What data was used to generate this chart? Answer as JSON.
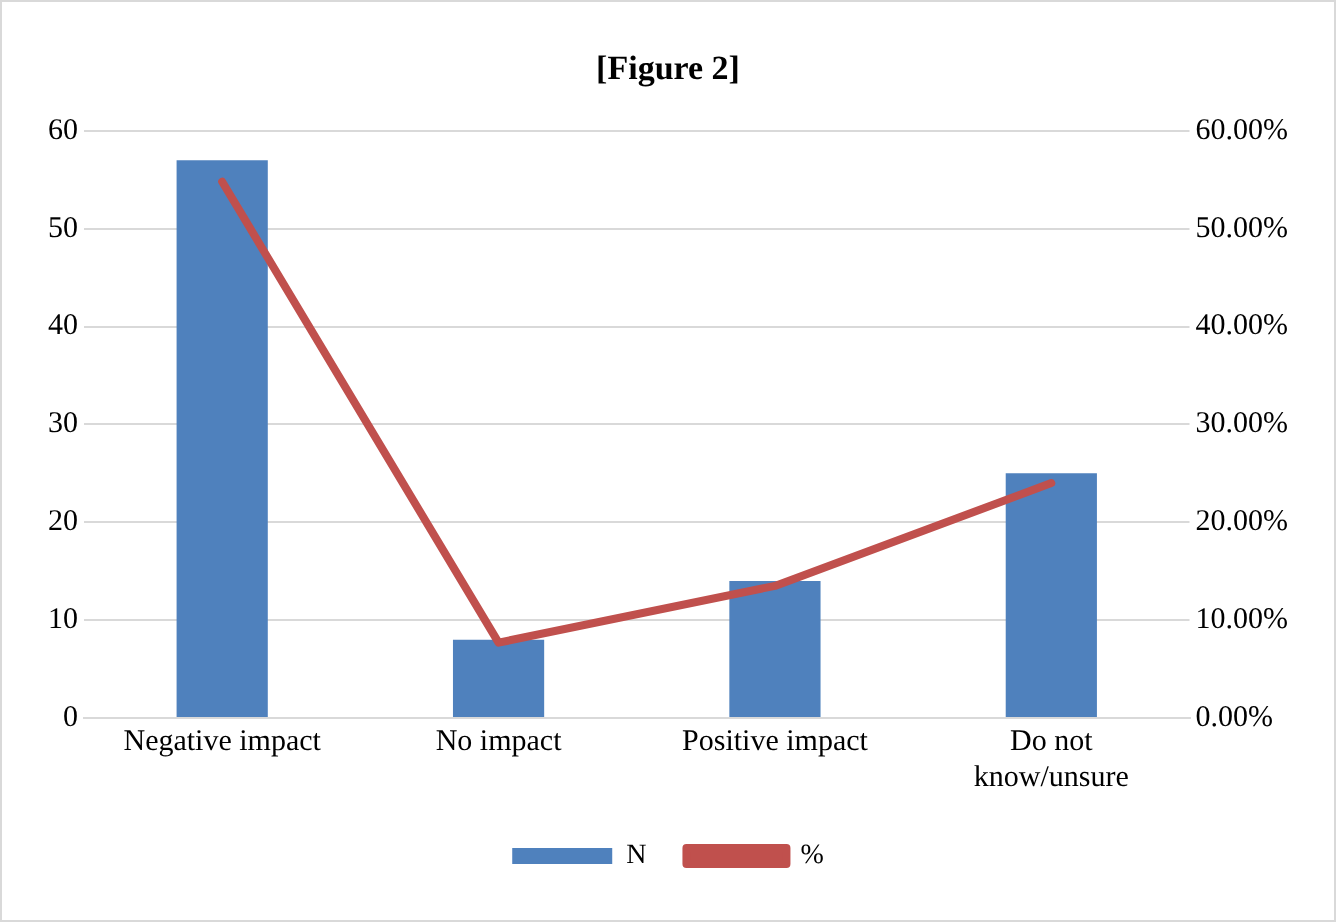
{
  "chart_data": {
    "type": "bar",
    "title": "[Figure 2]",
    "categories": [
      "Negative impact",
      "No impact",
      "Positive impact",
      "Do not know/unsure"
    ],
    "series": [
      {
        "name": "N",
        "color": "#4f81bd",
        "values": [
          57,
          8,
          14,
          25
        ]
      },
      {
        "name": "%",
        "type": "line",
        "color": "#c0504d",
        "axis": "y2",
        "marker": "none",
        "values": [
          54.8,
          7.7,
          13.5,
          24.0
        ]
      }
    ],
    "ylim": [
      0,
      60
    ],
    "yticks": [
      0,
      10,
      20,
      30,
      40,
      50,
      60
    ],
    "y2lim": [
      0,
      60
    ],
    "y2ticks": [
      {
        "value": 0,
        "label": "0.00%"
      },
      {
        "value": 10,
        "label": "10.00%"
      },
      {
        "value": 20,
        "label": "20.00%"
      },
      {
        "value": 30,
        "label": "30.00%"
      },
      {
        "value": 40,
        "label": "40.00%"
      },
      {
        "value": 50,
        "label": "50.00%"
      },
      {
        "value": 60,
        "label": "60.00%"
      }
    ],
    "grid": "y",
    "legend": "bottom"
  }
}
